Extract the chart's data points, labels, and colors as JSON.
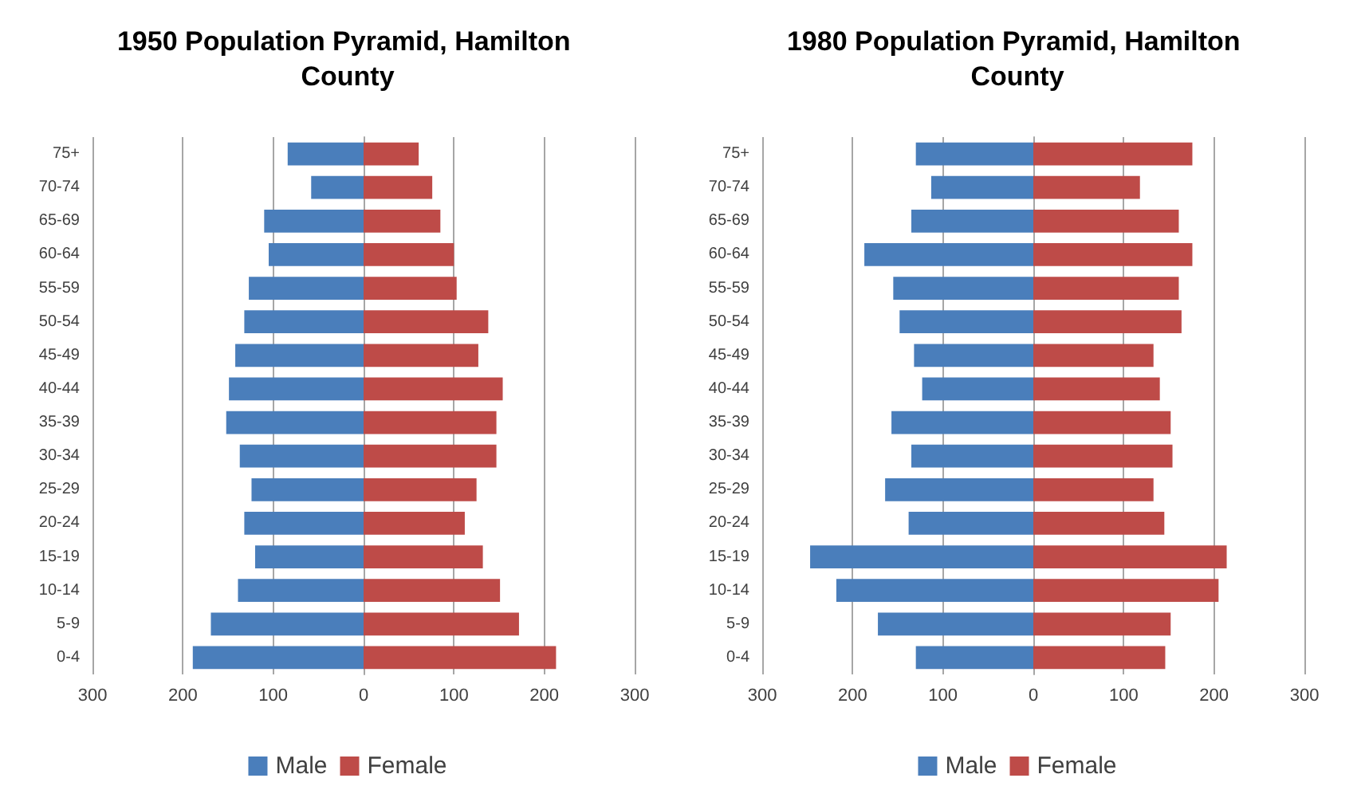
{
  "chart_data": [
    {
      "type": "bar",
      "title": "1950 Population Pyramid, Hamilton County",
      "orientation": "horizontal",
      "stacked": true,
      "categories": [
        "75+",
        "70-74",
        "65-69",
        "60-64",
        "55-59",
        "50-54",
        "45-49",
        "40-44",
        "35-39",
        "30-34",
        "25-29",
        "20-24",
        "15-19",
        "10-14",
        "5-9",
        "0-4"
      ],
      "series": [
        {
          "name": "Male",
          "color": "#4a7ebb",
          "values": [
            -84,
            -58,
            -110,
            -105,
            -127,
            -132,
            -142,
            -149,
            -152,
            -137,
            -124,
            -132,
            -120,
            -139,
            -169,
            -189
          ]
        },
        {
          "name": "Female",
          "color": "#be4b48",
          "values": [
            61,
            76,
            85,
            100,
            103,
            138,
            127,
            154,
            147,
            147,
            125,
            112,
            132,
            151,
            172,
            213
          ]
        }
      ],
      "xlim": [
        -300,
        300
      ],
      "xticks": [
        {
          "value": -300,
          "label": "300"
        },
        {
          "value": -200,
          "label": "200"
        },
        {
          "value": -100,
          "label": "100"
        },
        0,
        100,
        200,
        300
      ],
      "grid": "x",
      "legend": "bottom"
    },
    {
      "type": "bar",
      "title": "1980 Population Pyramid, Hamilton County",
      "orientation": "horizontal",
      "stacked": true,
      "categories": [
        "75+",
        "70-74",
        "65-69",
        "60-64",
        "55-59",
        "50-54",
        "45-49",
        "40-44",
        "35-39",
        "30-34",
        "25-29",
        "20-24",
        "15-19",
        "10-14",
        "5-9",
        "0-4"
      ],
      "series": [
        {
          "name": "Male",
          "color": "#4a7ebb",
          "values": [
            -130,
            -113,
            -135,
            -187,
            -155,
            -148,
            -132,
            -123,
            -157,
            -135,
            -164,
            -138,
            -247,
            -218,
            -172,
            -130
          ]
        },
        {
          "name": "Female",
          "color": "#be4b48",
          "values": [
            176,
            118,
            161,
            176,
            161,
            164,
            133,
            140,
            152,
            154,
            133,
            145,
            214,
            205,
            152,
            146
          ]
        }
      ],
      "xlim": [
        -300,
        300
      ],
      "xticks": [
        {
          "value": -300,
          "label": "300"
        },
        {
          "value": -200,
          "label": "200"
        },
        {
          "value": -100,
          "label": "100"
        },
        0,
        100,
        200,
        300
      ],
      "grid": "x",
      "legend": "bottom"
    }
  ]
}
